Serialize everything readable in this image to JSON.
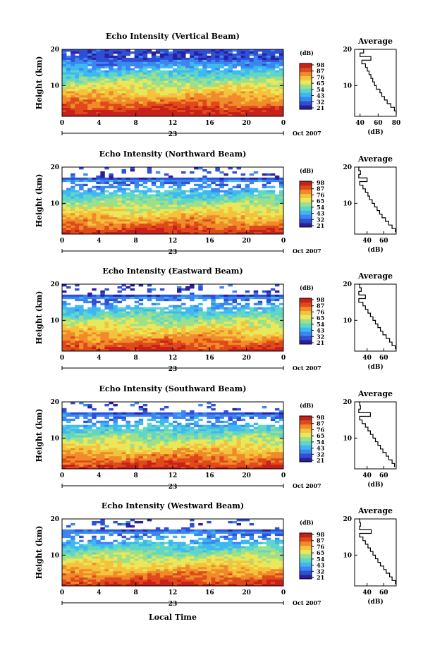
{
  "figure": {
    "xlabel": "Local Time",
    "date_label": "Oct 2007",
    "day_label": "23"
  },
  "colorbar": {
    "unit": "(dB)",
    "ticks": [
      "98",
      "87",
      "76",
      "65",
      "54",
      "43",
      "32",
      "21"
    ],
    "colors": [
      "#2a1f9e",
      "#2f4fd6",
      "#3b86f0",
      "#3fb8f2",
      "#5fd6c8",
      "#9ee08a",
      "#e8e85a",
      "#f5c23c",
      "#f08a2a",
      "#e04a1a",
      "#c8201a"
    ]
  },
  "chart_data": [
    {
      "type": "heatmap",
      "title": "Echo Intensity (Vertical Beam)",
      "ylabel": "Height (km)",
      "xlim": [
        0,
        24
      ],
      "ylim": [
        1.5,
        20
      ],
      "xticks": [
        "0",
        "4",
        "8",
        "12",
        "16",
        "20",
        "0"
      ],
      "yticks": [
        "10",
        "20"
      ],
      "profile": {
        "title": "Average",
        "xlabel": "(dB)",
        "xlim": [
          34,
          80
        ],
        "xticks": [
          "40",
          "60",
          "80"
        ],
        "yticks": [
          "10",
          "20"
        ],
        "height": [
          2,
          3,
          4,
          5,
          6,
          7,
          8,
          9,
          10,
          11,
          12,
          13,
          14,
          15,
          16,
          17,
          18,
          19,
          20
        ],
        "db": [
          80,
          78,
          74,
          70,
          67,
          64,
          62,
          58,
          56,
          54,
          52,
          50,
          48,
          46,
          42,
          52,
          40,
          44,
          38
        ]
      }
    },
    {
      "type": "heatmap",
      "title": "Echo Intensity (Northward Beam)",
      "ylabel": "Height (km)",
      "xlim": [
        0,
        24
      ],
      "ylim": [
        1.5,
        20
      ],
      "xticks": [
        "0",
        "4",
        "8",
        "12",
        "16",
        "20",
        "0"
      ],
      "yticks": [
        "10",
        "20"
      ],
      "profile": {
        "title": "Average",
        "xlabel": "(dB)",
        "xlim": [
          25,
          75
        ],
        "xticks": [
          "40",
          "60"
        ],
        "yticks": [
          "10",
          "20"
        ],
        "height": [
          2,
          3,
          4,
          5,
          6,
          7,
          8,
          9,
          10,
          11,
          12,
          13,
          14,
          15,
          16,
          17,
          18,
          19,
          20
        ],
        "db": [
          74,
          70,
          66,
          62,
          58,
          55,
          52,
          49,
          46,
          43,
          41,
          38,
          35,
          31,
          40,
          30,
          32,
          30,
          31
        ]
      }
    },
    {
      "type": "heatmap",
      "title": "Echo Intensity (Eastward Beam)",
      "ylabel": "Height (km)",
      "xlim": [
        0,
        24
      ],
      "ylim": [
        1.5,
        20
      ],
      "xticks": [
        "0",
        "4",
        "8",
        "12",
        "16",
        "20",
        "0"
      ],
      "yticks": [
        "10",
        "20"
      ],
      "profile": {
        "title": "Average",
        "xlabel": "(dB)",
        "xlim": [
          25,
          75
        ],
        "xticks": [
          "40",
          "60"
        ],
        "yticks": [
          "10",
          "20"
        ],
        "height": [
          2,
          3,
          4,
          5,
          6,
          7,
          8,
          9,
          10,
          11,
          12,
          13,
          14,
          15,
          16,
          17,
          18,
          19,
          20
        ],
        "db": [
          74,
          70,
          67,
          63,
          59,
          56,
          53,
          50,
          47,
          44,
          41,
          38,
          35,
          30,
          38,
          30,
          33,
          31,
          32
        ]
      }
    },
    {
      "type": "heatmap",
      "title": "Echo Intensity (Southward Beam)",
      "ylabel": "Height (km)",
      "xlim": [
        0,
        24
      ],
      "ylim": [
        1.5,
        20
      ],
      "xticks": [
        "0",
        "4",
        "8",
        "12",
        "16",
        "20",
        "0"
      ],
      "yticks": [
        "10",
        "20"
      ],
      "profile": {
        "title": "Average",
        "xlabel": "(dB)",
        "xlim": [
          25,
          75
        ],
        "xticks": [
          "40",
          "60"
        ],
        "yticks": [
          "10",
          "20"
        ],
        "height": [
          2,
          3,
          4,
          5,
          6,
          7,
          8,
          9,
          10,
          11,
          12,
          13,
          14,
          15,
          16,
          17,
          18,
          19,
          20
        ],
        "db": [
          73,
          70,
          66,
          63,
          59,
          56,
          53,
          50,
          47,
          44,
          41,
          38,
          34,
          31,
          44,
          30,
          32,
          31,
          30
        ]
      }
    },
    {
      "type": "heatmap",
      "title": "Echo Intensity (Westward Beam)",
      "ylabel": "Height (km)",
      "xlim": [
        0,
        24
      ],
      "ylim": [
        1.5,
        20
      ],
      "xticks": [
        "0",
        "4",
        "8",
        "12",
        "16",
        "20",
        "0"
      ],
      "yticks": [
        "10",
        "20"
      ],
      "profile": {
        "title": "Average",
        "xlabel": "(dB)",
        "xlim": [
          25,
          75
        ],
        "xticks": [
          "40",
          "60"
        ],
        "yticks": [
          "10",
          "20"
        ],
        "height": [
          2,
          3,
          4,
          5,
          6,
          7,
          8,
          9,
          10,
          11,
          12,
          13,
          14,
          15,
          16,
          17,
          18,
          19,
          20
        ],
        "db": [
          74,
          70,
          67,
          63,
          60,
          56,
          53,
          50,
          47,
          44,
          41,
          38,
          35,
          31,
          45,
          31,
          32,
          31,
          30
        ]
      }
    }
  ]
}
